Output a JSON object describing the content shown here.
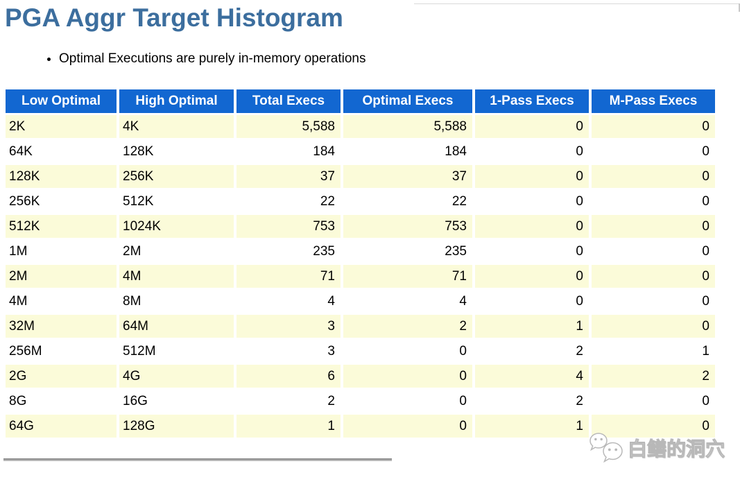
{
  "page": {
    "title": "PGA Aggr Target Histogram",
    "note": "Optimal Executions are purely in-memory operations"
  },
  "colors": {
    "title": "#3C6E9E",
    "header_bg": "#1267D1",
    "header_text": "#FFFFFF",
    "row_stripe_bg": "#FBFBD9",
    "row_plain_bg": "#FFFFFF",
    "divider": "#9A9A9A",
    "watermark": "#B8B8B8"
  },
  "watermark": {
    "icon": "wechat-icon",
    "text": "白鳝的洞穴"
  },
  "chart_data": {
    "type": "table",
    "title": "PGA Aggr Target Histogram",
    "columns": [
      "Low Optimal",
      "High Optimal",
      "Total Execs",
      "Optimal Execs",
      "1-Pass Execs",
      "M-Pass Execs"
    ],
    "column_alignments": [
      "left",
      "left",
      "right",
      "right",
      "right",
      "right"
    ],
    "rows": [
      [
        "2K",
        "4K",
        "5,588",
        "5,588",
        "0",
        "0"
      ],
      [
        "64K",
        "128K",
        "184",
        "184",
        "0",
        "0"
      ],
      [
        "128K",
        "256K",
        "37",
        "37",
        "0",
        "0"
      ],
      [
        "256K",
        "512K",
        "22",
        "22",
        "0",
        "0"
      ],
      [
        "512K",
        "1024K",
        "753",
        "753",
        "0",
        "0"
      ],
      [
        "1M",
        "2M",
        "235",
        "235",
        "0",
        "0"
      ],
      [
        "2M",
        "4M",
        "71",
        "71",
        "0",
        "0"
      ],
      [
        "4M",
        "8M",
        "4",
        "4",
        "0",
        "0"
      ],
      [
        "32M",
        "64M",
        "3",
        "2",
        "1",
        "0"
      ],
      [
        "256M",
        "512M",
        "3",
        "0",
        "2",
        "1"
      ],
      [
        "2G",
        "4G",
        "6",
        "0",
        "4",
        "2"
      ],
      [
        "8G",
        "16G",
        "2",
        "0",
        "2",
        "0"
      ],
      [
        "64G",
        "128G",
        "1",
        "0",
        "1",
        "0"
      ]
    ]
  }
}
